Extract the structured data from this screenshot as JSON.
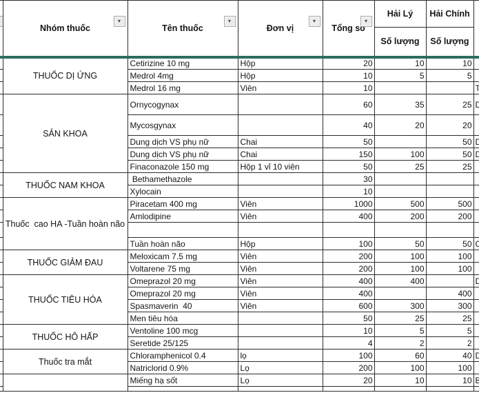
{
  "app": {
    "kind": "spreadsheet medicine inventory table"
  },
  "colors": {
    "header_separator": "#2e6b5f",
    "grid": "#2b2b2b",
    "filter_button_bg": "#ececec"
  },
  "header": {
    "group_col": "Nhóm thuốc",
    "name_col": "Tên thuốc",
    "unit_col": "Đơn vị",
    "total_col": "Tổng số",
    "site1": "Hải Lý",
    "site2": "Hải Chính",
    "qty_label": "Số lượng",
    "filter_icon": "▾"
  },
  "groups": [
    {
      "label": "THUỐC DỊ ỨNG",
      "rows": [
        {
          "name": "Cetirizine 10 mg",
          "unit": "Hộp",
          "total": "20",
          "haily": "10",
          "haichinh": "10",
          "edge": ""
        },
        {
          "name": "Medrol 4mg",
          "unit": "Hộp",
          "total": "10",
          "haily": "5",
          "haichinh": "5",
          "edge": ""
        },
        {
          "name": "Medrol 16 mg",
          "unit": "Viên",
          "total": "10",
          "haily": "",
          "haichinh": "",
          "edge": "T"
        }
      ]
    },
    {
      "label": "SẢN KHOA",
      "rows": [
        {
          "name": "Ornycogynax",
          "unit": "",
          "total": "60",
          "haily": "35",
          "haichinh": "25",
          "edge": "D",
          "tall": true
        },
        {
          "name": "Mycosgynax",
          "unit": "",
          "total": "40",
          "haily": "20",
          "haichinh": "20",
          "edge": "",
          "tall": true
        },
        {
          "name": "Dung dịch VS phụ nữ",
          "unit": "Chai",
          "total": "50",
          "haily": "",
          "haichinh": "50",
          "edge": "D"
        },
        {
          "name": "Dung dịch VS phụ nữ",
          "unit": "Chai",
          "total": "150",
          "haily": "100",
          "haichinh": "50",
          "edge": "D"
        },
        {
          "name": "Finaconazole 150 mg",
          "unit": "Hộp 1 vỉ 10 viên",
          "total": "50",
          "haily": "25",
          "haichinh": "25",
          "edge": ""
        }
      ]
    },
    {
      "label": "THUỐC NAM KHOA",
      "rows": [
        {
          "name": " Bethamethazole",
          "unit": "",
          "total": "30",
          "haily": "",
          "haichinh": "",
          "edge": ""
        },
        {
          "name": "Xylocain",
          "unit": "",
          "total": "10",
          "haily": "",
          "haichinh": "",
          "edge": ""
        }
      ]
    },
    {
      "label": "Thuốc  cao HA -Tuần hoàn não",
      "rows": [
        {
          "name": "Piracetam 400 mg",
          "unit": "Viên",
          "total": "1000",
          "haily": "500",
          "haichinh": "500",
          "edge": ""
        },
        {
          "name": "Amlodipine",
          "unit": "Viên",
          "total": "400",
          "haily": "200",
          "haichinh": "200",
          "edge": ""
        },
        {
          "name": "",
          "unit": "",
          "total": "",
          "haily": "",
          "haichinh": "",
          "edge": "",
          "blank": true
        },
        {
          "name": "Tuần hoàn não",
          "unit": "Hộp",
          "total": "100",
          "haily": "50",
          "haichinh": "50",
          "edge": "C"
        }
      ]
    },
    {
      "label": "THUỐC GIẢM ĐAU",
      "rows": [
        {
          "name": "Meloxicam 7.5 mg",
          "unit": "Viên",
          "total": "200",
          "haily": "100",
          "haichinh": "100",
          "edge": ""
        },
        {
          "name": "Voltarene 75 mg",
          "unit": "Viên",
          "total": "200",
          "haily": "100",
          "haichinh": "100",
          "edge": ""
        }
      ]
    },
    {
      "label": "THUỐC TIÊU HÓA",
      "rows": [
        {
          "name": "Omeprazol 20 mg",
          "unit": "Viên",
          "total": "400",
          "haily": "400",
          "haichinh": "",
          "edge": "D"
        },
        {
          "name": "Omeprazol 20 mg",
          "unit": "Viên",
          "total": "400",
          "haily": "",
          "haichinh": "400",
          "edge": ""
        },
        {
          "name": "Spasmaverin  40",
          "unit": "Viên",
          "total": "600",
          "haily": "300",
          "haichinh": "300",
          "edge": ""
        },
        {
          "name": "Men tiêu hóa",
          "unit": "",
          "total": "50",
          "haily": "25",
          "haichinh": "25",
          "edge": ""
        }
      ]
    },
    {
      "label": "THUỐC HÔ HẤP",
      "rows": [
        {
          "name": "Ventoline 100 mcg",
          "unit": "",
          "total": "10",
          "haily": "5",
          "haichinh": "5",
          "edge": ""
        },
        {
          "name": "Seretide 25/125",
          "unit": "",
          "total": "4",
          "haily": "2",
          "haichinh": "2",
          "edge": ""
        }
      ]
    },
    {
      "label": "Thuốc tra mắt",
      "rows": [
        {
          "name": "Chloramphenicol 0.4",
          "unit": "lọ",
          "total": "100",
          "haily": "60",
          "haichinh": "40",
          "edge": "D"
        },
        {
          "name": "Natriclorid 0.9%",
          "unit": "Lọ",
          "total": "200",
          "haily": "100",
          "haichinh": "100",
          "edge": ""
        }
      ]
    },
    {
      "label": "",
      "rows": [
        {
          "name": "Miếng hạ sốt",
          "unit": "Lọ",
          "total": "20",
          "haily": "10",
          "haichinh": "10",
          "edge": "B"
        },
        {
          "name": "",
          "unit": "",
          "total": "",
          "haily": "",
          "haichinh": "",
          "edge": "",
          "partial": true
        }
      ]
    }
  ]
}
